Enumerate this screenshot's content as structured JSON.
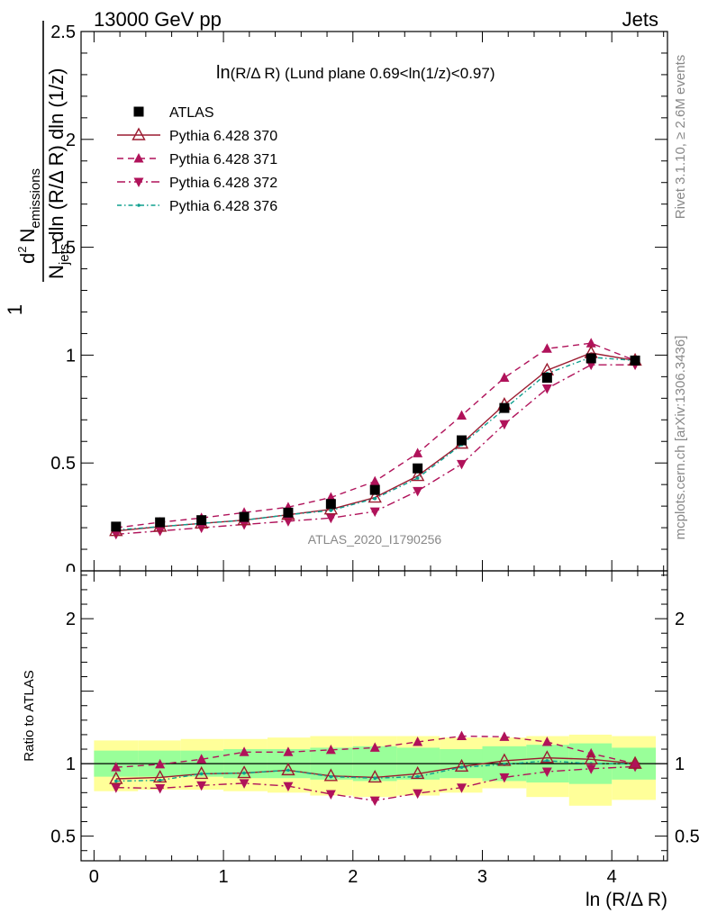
{
  "header": {
    "left_label": "13000 GeV pp",
    "right_label": "Jets"
  },
  "side_labels": {
    "rivet": "Rivet 3.1.10, ≥ 2.6M events",
    "mcplots": "mcplots.cern.ch [arXiv:1306.3436]"
  },
  "watermark": "ATLAS_2020_I1790256",
  "colors": {
    "atlas": "#000000",
    "py370": "#9b1b30",
    "py371": "#b0125a",
    "py372": "#b0125a",
    "py376": "#0e9f8e",
    "band_inner": "#99ff99",
    "band_outer": "#ffff99"
  },
  "chart_data": [
    {
      "type": "scatter",
      "panel": "main",
      "title_prefix": "ln",
      "title_main": "(R/Δ R) (Lund plane 0.69<ln(1/z)<0.97)",
      "ylabel": "1/N_jets d²N_emissions / dln(R/Δ R) dln(1/z)",
      "ylabel_parts": {
        "one": "1",
        "d2": "d",
        "sup2": "2",
        "N": "N",
        "emissions": "emissions",
        "N2": "N",
        "jets": "jets",
        "denominator_rest": "dln (R/Δ R) dln (1/z)"
      },
      "xlim": [
        -0.1,
        4.43
      ],
      "ylim": [
        0,
        2.5
      ],
      "ytick_values": [
        0.5,
        1,
        1.5,
        2,
        2.5
      ],
      "ytick_labels": [
        "0.5",
        "1",
        "1.5",
        "2",
        "2.5"
      ],
      "ytick_partial_label": "0",
      "x": [
        0.17,
        0.51,
        0.83,
        1.16,
        1.5,
        1.83,
        2.17,
        2.5,
        2.84,
        3.17,
        3.5,
        3.84,
        4.18
      ],
      "series": [
        {
          "name": "ATLAS",
          "key": "atlas",
          "marker": "square",
          "line": "none",
          "values": [
            0.205,
            0.225,
            0.235,
            0.25,
            0.27,
            0.31,
            0.375,
            0.475,
            0.605,
            0.755,
            0.895,
            0.985,
            0.975
          ]
        },
        {
          "name": "Pythia 6.428 370",
          "key": "py370",
          "marker": "open-triangle-up",
          "line": "solid",
          "values": [
            0.185,
            0.205,
            0.22,
            0.235,
            0.26,
            0.285,
            0.34,
            0.44,
            0.59,
            0.77,
            0.93,
            1.01,
            0.975
          ]
        },
        {
          "name": "Pythia 6.428 371",
          "key": "py371",
          "marker": "triangle-up",
          "line": "dashed",
          "values": [
            0.2,
            0.225,
            0.245,
            0.27,
            0.295,
            0.34,
            0.415,
            0.545,
            0.72,
            0.895,
            1.03,
            1.055,
            0.975
          ]
        },
        {
          "name": "Pythia 6.428 372",
          "key": "py372",
          "marker": "triangle-down",
          "line": "dashdot",
          "values": [
            0.17,
            0.185,
            0.2,
            0.215,
            0.23,
            0.245,
            0.275,
            0.37,
            0.495,
            0.68,
            0.845,
            0.955,
            0.955
          ]
        },
        {
          "name": "Pythia 6.428 376",
          "key": "py376",
          "marker": "dot",
          "line": "dashdot-fine",
          "values": [
            0.19,
            0.205,
            0.22,
            0.235,
            0.26,
            0.28,
            0.335,
            0.43,
            0.585,
            0.75,
            0.915,
            0.99,
            0.975
          ]
        }
      ]
    },
    {
      "type": "scatter",
      "panel": "ratio",
      "xlabel": "ln (R/Δ R)",
      "ylabel": "Ratio to ATLAS",
      "xlim": [
        -0.1,
        4.43
      ],
      "ylim": [
        0.33,
        2.33
      ],
      "xtick_values": [
        0,
        1,
        2,
        3,
        4
      ],
      "xtick_labels": [
        "0",
        "1",
        "2",
        "3",
        "4"
      ],
      "ytick_values": [
        0.5,
        1,
        2
      ],
      "ytick_labels": [
        "0.5",
        "1",
        "2"
      ],
      "x": [
        0.17,
        0.51,
        0.83,
        1.16,
        1.5,
        1.83,
        2.17,
        2.5,
        2.84,
        3.17,
        3.5,
        3.84,
        4.18
      ],
      "bins": [
        [
          0.0,
          0.34
        ],
        [
          0.34,
          0.67
        ],
        [
          0.67,
          1.0
        ],
        [
          1.0,
          1.34
        ],
        [
          1.34,
          1.67
        ],
        [
          1.67,
          2.0
        ],
        [
          2.0,
          2.34
        ],
        [
          2.34,
          2.67
        ],
        [
          2.67,
          3.0
        ],
        [
          3.0,
          3.34
        ],
        [
          3.34,
          3.67
        ],
        [
          3.67,
          4.0
        ],
        [
          4.0,
          4.34
        ]
      ],
      "band_inner": [
        [
          0.91,
          1.09
        ],
        [
          0.91,
          1.09
        ],
        [
          0.91,
          1.09
        ],
        [
          0.9,
          1.1
        ],
        [
          0.9,
          1.1
        ],
        [
          0.89,
          1.11
        ],
        [
          0.88,
          1.12
        ],
        [
          0.89,
          1.11
        ],
        [
          0.9,
          1.1
        ],
        [
          0.88,
          1.12
        ],
        [
          0.87,
          1.13
        ],
        [
          0.86,
          1.14
        ],
        [
          0.89,
          1.11
        ]
      ],
      "band_outer": [
        [
          0.81,
          1.16
        ],
        [
          0.82,
          1.16
        ],
        [
          0.82,
          1.17
        ],
        [
          0.81,
          1.17
        ],
        [
          0.8,
          1.18
        ],
        [
          0.78,
          1.19
        ],
        [
          0.77,
          1.19
        ],
        [
          0.78,
          1.19
        ],
        [
          0.8,
          1.18
        ],
        [
          0.83,
          1.18
        ],
        [
          0.77,
          1.19
        ],
        [
          0.71,
          1.2
        ],
        [
          0.75,
          1.19
        ]
      ],
      "reference_line": 1,
      "series": [
        {
          "name": "Pythia 6.428 370",
          "key": "py370",
          "marker": "open-triangle-up",
          "line": "solid",
          "values": [
            0.895,
            0.905,
            0.93,
            0.935,
            0.955,
            0.915,
            0.905,
            0.93,
            0.98,
            1.02,
            1.04,
            1.03,
            1.0
          ]
        },
        {
          "name": "Pythia 6.428 371",
          "key": "py371",
          "marker": "triangle-up",
          "line": "dashed",
          "values": [
            0.975,
            0.995,
            1.03,
            1.08,
            1.08,
            1.095,
            1.11,
            1.15,
            1.19,
            1.185,
            1.15,
            1.07,
            1.0
          ]
        },
        {
          "name": "Pythia 6.428 372",
          "key": "py372",
          "marker": "triangle-down",
          "line": "dashdot",
          "values": [
            0.835,
            0.83,
            0.85,
            0.865,
            0.845,
            0.79,
            0.745,
            0.795,
            0.835,
            0.905,
            0.945,
            0.965,
            0.98
          ]
        },
        {
          "name": "Pythia 6.428 376",
          "key": "py376",
          "marker": "dot",
          "line": "dashdot-fine",
          "values": [
            0.88,
            0.885,
            0.93,
            0.935,
            0.955,
            0.91,
            0.9,
            0.91,
            0.975,
            0.995,
            1.02,
            1.0,
            1.0
          ]
        }
      ]
    }
  ]
}
